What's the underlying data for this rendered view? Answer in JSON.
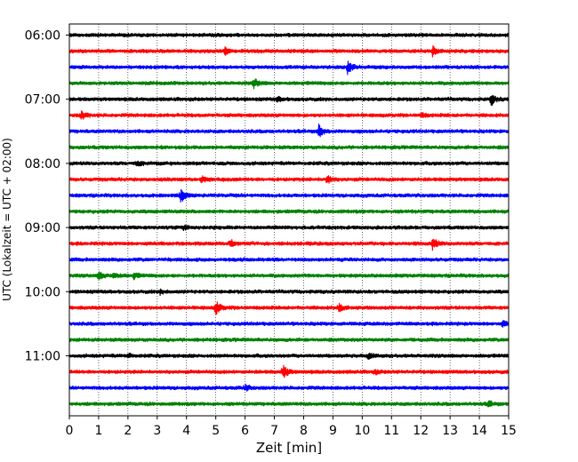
{
  "chart_data": {
    "type": "line",
    "title": "",
    "xlabel": "Zeit  [min]",
    "ylabel": "UTC (Lokalzeit = UTC + 02:00)",
    "xlim": [
      0,
      15
    ],
    "x_ticks": [
      "0",
      "1",
      "2",
      "3",
      "4",
      "5",
      "6",
      "7",
      "8",
      "9",
      "10",
      "11",
      "12",
      "13",
      "14",
      "15"
    ],
    "y_tick_labels": [
      "06:00",
      "07:00",
      "08:00",
      "09:00",
      "10:00",
      "11:00"
    ],
    "rows_per_hour": 4,
    "row_interval_min": 15,
    "grid": "vertical dotted at each minute",
    "trace_colors": [
      "#000000",
      "#ff0000",
      "#0000ff",
      "#008000"
    ],
    "series": [
      {
        "start": "06:00",
        "color": "#000000",
        "events": []
      },
      {
        "start": "06:15",
        "color": "#ff0000",
        "events": [
          {
            "t": 5.3,
            "amp": 0.5
          },
          {
            "t": 12.4,
            "amp": 0.6
          }
        ]
      },
      {
        "start": "06:30",
        "color": "#0000ff",
        "events": [
          {
            "t": 9.5,
            "amp": 0.9
          }
        ]
      },
      {
        "start": "06:45",
        "color": "#008000",
        "events": [
          {
            "t": 6.3,
            "amp": 0.7
          }
        ]
      },
      {
        "start": "07:00",
        "color": "#000000",
        "events": [
          {
            "t": 7.1,
            "amp": 0.3
          },
          {
            "t": 14.4,
            "amp": 0.8
          }
        ]
      },
      {
        "start": "07:15",
        "color": "#ff0000",
        "events": [
          {
            "t": 0.4,
            "amp": 0.6
          },
          {
            "t": 12.0,
            "amp": 0.3
          }
        ]
      },
      {
        "start": "07:30",
        "color": "#0000ff",
        "events": [
          {
            "t": 8.5,
            "amp": 1.0
          }
        ]
      },
      {
        "start": "07:45",
        "color": "#008000",
        "events": []
      },
      {
        "start": "08:00",
        "color": "#000000",
        "events": [
          {
            "t": 2.3,
            "amp": 0.4
          }
        ]
      },
      {
        "start": "08:15",
        "color": "#ff0000",
        "events": [
          {
            "t": 4.5,
            "amp": 0.5
          },
          {
            "t": 8.8,
            "amp": 0.6
          }
        ]
      },
      {
        "start": "08:30",
        "color": "#0000ff",
        "events": [
          {
            "t": 3.8,
            "amp": 1.0
          }
        ]
      },
      {
        "start": "08:45",
        "color": "#008000",
        "events": []
      },
      {
        "start": "09:00",
        "color": "#000000",
        "events": [
          {
            "t": 3.9,
            "amp": 0.3
          }
        ]
      },
      {
        "start": "09:15",
        "color": "#ff0000",
        "events": [
          {
            "t": 5.5,
            "amp": 0.5
          },
          {
            "t": 12.4,
            "amp": 0.9
          }
        ]
      },
      {
        "start": "09:30",
        "color": "#0000ff",
        "events": []
      },
      {
        "start": "09:45",
        "color": "#008000",
        "events": [
          {
            "t": 1.0,
            "amp": 0.6
          },
          {
            "t": 1.5,
            "amp": 0.5
          },
          {
            "t": 2.2,
            "amp": 0.4
          }
        ]
      },
      {
        "start": "10:00",
        "color": "#000000",
        "events": [
          {
            "t": 3.1,
            "amp": 0.3
          }
        ]
      },
      {
        "start": "10:15",
        "color": "#ff0000",
        "events": [
          {
            "t": 5.0,
            "amp": 1.0
          },
          {
            "t": 9.2,
            "amp": 0.5
          }
        ]
      },
      {
        "start": "10:30",
        "color": "#0000ff",
        "events": [
          {
            "t": 14.8,
            "amp": 0.4
          }
        ]
      },
      {
        "start": "10:45",
        "color": "#008000",
        "events": []
      },
      {
        "start": "11:00",
        "color": "#000000",
        "events": [
          {
            "t": 10.2,
            "amp": 0.4
          },
          {
            "t": 2.0,
            "amp": 0.3
          }
        ]
      },
      {
        "start": "11:15",
        "color": "#ff0000",
        "events": [
          {
            "t": 7.3,
            "amp": 1.0
          },
          {
            "t": 10.4,
            "amp": 0.3
          }
        ]
      },
      {
        "start": "11:30",
        "color": "#0000ff",
        "events": [
          {
            "t": 6.0,
            "amp": 0.4
          }
        ]
      },
      {
        "start": "11:45",
        "color": "#008000",
        "events": [
          {
            "t": 14.3,
            "amp": 0.4
          }
        ]
      }
    ]
  }
}
